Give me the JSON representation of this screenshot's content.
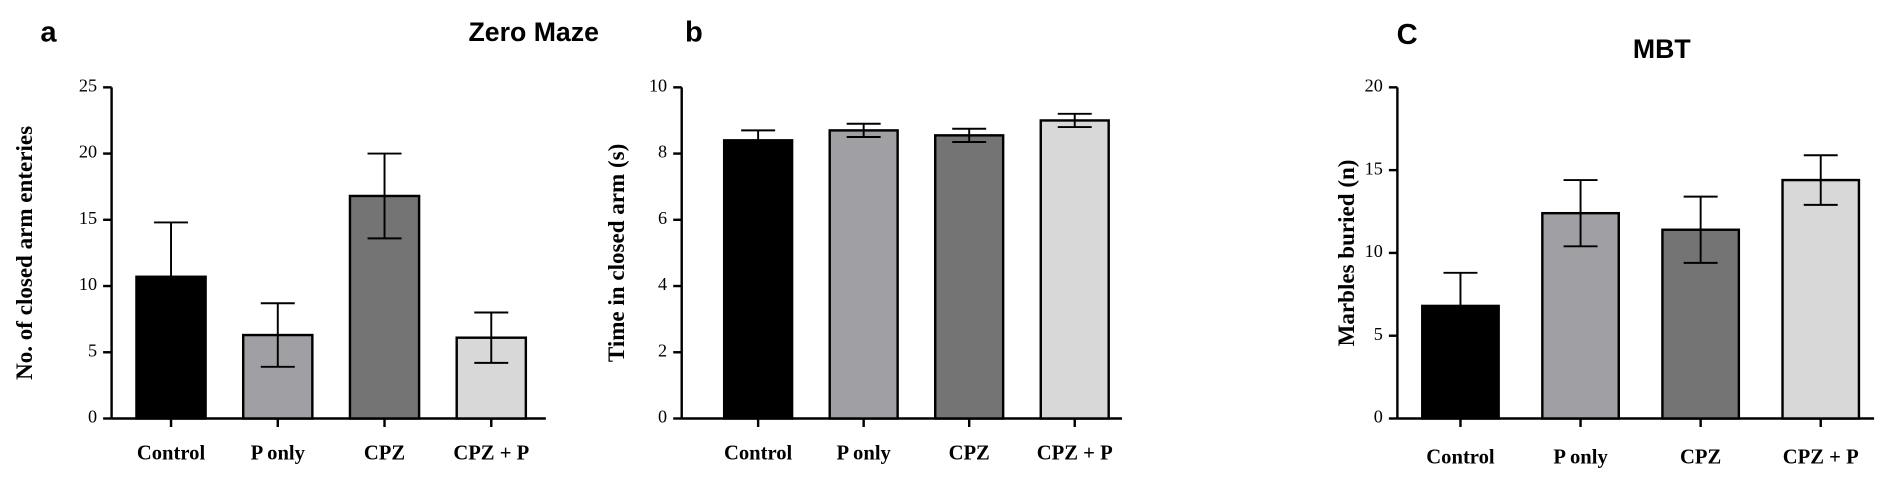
{
  "chart_data": [
    {
      "type": "bar",
      "label": "a",
      "title": "Zero Maze",
      "ylabel": "No. of closed arm enteries",
      "categories": [
        "Control",
        "P only",
        "CPZ",
        "CPZ + P"
      ],
      "values": [
        10.7,
        6.3,
        16.8,
        6.1
      ],
      "errors": [
        4.1,
        2.4,
        3.2,
        1.9
      ],
      "colors": [
        "#000000",
        "#a0a0a4",
        "#747474",
        "#d8d8d8"
      ],
      "ylim": [
        0,
        25
      ],
      "yticks": [
        0,
        5,
        10,
        15,
        20,
        25
      ]
    },
    {
      "type": "bar",
      "label": "b",
      "ylabel": "Time in closed arm (s)",
      "categories": [
        "Control",
        "P only",
        "CPZ",
        "CPZ + P"
      ],
      "values": [
        8.4,
        8.7,
        8.55,
        9.0
      ],
      "errors": [
        0.3,
        0.2,
        0.2,
        0.2
      ],
      "colors": [
        "#000000",
        "#a0a0a4",
        "#747474",
        "#d8d8d8"
      ],
      "ylim": [
        0,
        10
      ],
      "yticks": [
        0,
        2,
        4,
        6,
        8,
        10
      ]
    },
    {
      "type": "bar",
      "label": "C",
      "title": "MBT",
      "ylabel": "Marbles buried (n)",
      "categories": [
        "Control",
        "P only",
        "CPZ",
        "CPZ + P"
      ],
      "values": [
        6.8,
        12.4,
        11.4,
        14.4
      ],
      "errors": [
        2.0,
        2.0,
        2.0,
        1.5
      ],
      "colors": [
        "#000000",
        "#a0a0a4",
        "#747474",
        "#d8d8d8"
      ],
      "ylim": [
        0,
        20
      ],
      "yticks": [
        0,
        5,
        10,
        15,
        20
      ]
    }
  ]
}
